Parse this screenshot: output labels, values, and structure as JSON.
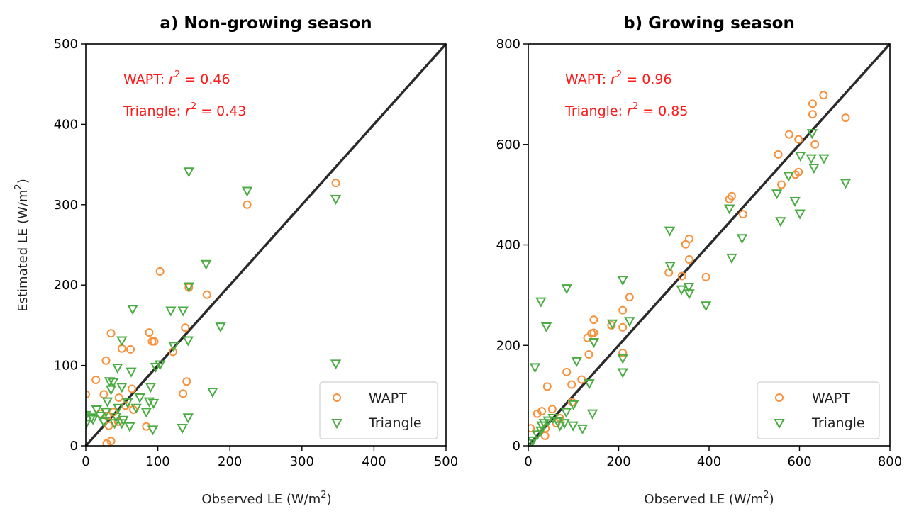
{
  "colors": {
    "wapt": "#f7913b",
    "triangle": "#4aac43",
    "line": "#2b2b2b",
    "annotation": "#ff1a1a"
  },
  "chart_data": [
    {
      "type": "scatter",
      "title": "a) Non-growing season",
      "xlabel_main": "Observed LE (W/m",
      "xlabel_sup": "2",
      "xlabel_end": ")",
      "ylabel_main": "Estimated LE (W/m",
      "ylabel_sup": "2",
      "ylabel_end": ")",
      "xlim": [
        0,
        500
      ],
      "ylim": [
        0,
        500
      ],
      "xticks": [
        0,
        100,
        200,
        300,
        400,
        500
      ],
      "yticks": [
        0,
        100,
        200,
        300,
        400,
        500
      ],
      "xtick_labels": [
        "0",
        "100",
        "200",
        "300",
        "400",
        "500"
      ],
      "ytick_labels": [
        "0",
        "100",
        "200",
        "300",
        "400",
        "500"
      ],
      "one_to_one_line": true,
      "annotations": [
        {
          "prefix": "WAPT: ",
          "r": "r",
          "sup": "2",
          "suffix": " = 0.46"
        },
        {
          "prefix": "Triangle: ",
          "r": "r",
          "sup": "2",
          "suffix": " = 0.43"
        }
      ],
      "legend": [
        "WAPT",
        "Triangle"
      ],
      "legend_position": "lower-right",
      "series": [
        {
          "name": "WAPT",
          "marker": "circle",
          "points": [
            [
              0,
              64
            ],
            [
              14,
              82
            ],
            [
              28,
              106
            ],
            [
              35,
              140
            ],
            [
              50,
              121
            ],
            [
              62,
              120
            ],
            [
              103,
              217
            ],
            [
              143,
              197
            ],
            [
              138,
              147
            ],
            [
              168,
              188
            ],
            [
              88,
              141
            ],
            [
              92,
              130
            ],
            [
              95,
              130
            ],
            [
              121,
              117
            ],
            [
              140,
              80
            ],
            [
              135,
              65
            ],
            [
              64,
              71
            ],
            [
              66,
              45
            ],
            [
              46,
              60
            ],
            [
              30,
              37
            ],
            [
              38,
              42
            ],
            [
              45,
              30
            ],
            [
              25,
              64
            ],
            [
              32,
              25
            ],
            [
              29,
              3
            ],
            [
              35,
              6
            ],
            [
              84,
              24
            ],
            [
              224,
              300
            ],
            [
              347,
              327
            ],
            [
              55,
              50
            ],
            [
              20,
              40
            ]
          ]
        },
        {
          "name": "Triangle",
          "marker": "triangle",
          "points": [
            [
              143,
              341
            ],
            [
              224,
              317
            ],
            [
              347,
              307
            ],
            [
              167,
              226
            ],
            [
              143,
              198
            ],
            [
              65,
              170
            ],
            [
              118,
              168
            ],
            [
              135,
              168
            ],
            [
              187,
              148
            ],
            [
              50,
              131
            ],
            [
              122,
              124
            ],
            [
              142,
              131
            ],
            [
              44,
              97
            ],
            [
              97,
              98
            ],
            [
              103,
              101
            ],
            [
              33,
              80
            ],
            [
              38,
              79
            ],
            [
              50,
              73
            ],
            [
              90,
              73
            ],
            [
              63,
              92
            ],
            [
              35,
              70
            ],
            [
              0,
              38
            ],
            [
              10,
              33
            ],
            [
              20,
              37
            ],
            [
              25,
              30
            ],
            [
              28,
              42
            ],
            [
              40,
              28
            ],
            [
              42,
              36
            ],
            [
              50,
              28
            ],
            [
              52,
              32
            ],
            [
              45,
              47
            ],
            [
              58,
              54
            ],
            [
              75,
              60
            ],
            [
              88,
              55
            ],
            [
              94,
              53
            ],
            [
              84,
              42
            ],
            [
              61,
              24
            ],
            [
              93,
              20
            ],
            [
              134,
              22
            ],
            [
              142,
              35
            ],
            [
              176,
              67
            ],
            [
              347,
              102
            ],
            [
              0,
              27
            ],
            [
              8,
              35
            ],
            [
              15,
              45
            ],
            [
              30,
              55
            ],
            [
              70,
              47
            ]
          ]
        }
      ]
    },
    {
      "type": "scatter",
      "title": "b) Growing season",
      "xlabel_main": "Observed LE (W/m",
      "xlabel_sup": "2",
      "xlabel_end": ")",
      "xlim": [
        0,
        800
      ],
      "ylim": [
        0,
        800
      ],
      "xticks": [
        0,
        200,
        400,
        600,
        800
      ],
      "yticks": [
        0,
        200,
        400,
        600,
        800
      ],
      "xtick_labels": [
        "0",
        "200",
        "400",
        "600",
        "800"
      ],
      "ytick_labels": [
        "0",
        "200",
        "400",
        "600",
        "800"
      ],
      "one_to_one_line": true,
      "annotations": [
        {
          "prefix": "WAPT: ",
          "r": "r",
          "sup": "2",
          "suffix": " = 0.96"
        },
        {
          "prefix": "Triangle: ",
          "r": "r",
          "sup": "2",
          "suffix": " = 0.85"
        }
      ],
      "legend": [
        "WAPT",
        "Triangle"
      ],
      "legend_position": "lower-right",
      "series": [
        {
          "name": "WAPT",
          "marker": "circle",
          "points": [
            [
              653,
              698
            ],
            [
              629,
              681
            ],
            [
              629,
              660
            ],
            [
              702,
              653
            ],
            [
              577,
              620
            ],
            [
              598,
              610
            ],
            [
              634,
              600
            ],
            [
              553,
              580
            ],
            [
              598,
              545
            ],
            [
              591,
              540
            ],
            [
              560,
              520
            ],
            [
              450,
              497
            ],
            [
              445,
              491
            ],
            [
              475,
              461
            ],
            [
              356,
              412
            ],
            [
              348,
              401
            ],
            [
              356,
              371
            ],
            [
              340,
              338
            ],
            [
              311,
              345
            ],
            [
              393,
              336
            ],
            [
              224,
              296
            ],
            [
              209,
              270
            ],
            [
              145,
              251
            ],
            [
              145,
              225
            ],
            [
              140,
              224
            ],
            [
              131,
              215
            ],
            [
              209,
              236
            ],
            [
              184,
              240
            ],
            [
              209,
              185
            ],
            [
              134,
              182
            ],
            [
              85,
              147
            ],
            [
              118,
              132
            ],
            [
              96,
              122
            ],
            [
              42,
              118
            ],
            [
              97,
              87
            ],
            [
              53,
              73
            ],
            [
              30,
              69
            ],
            [
              20,
              64
            ],
            [
              38,
              35
            ],
            [
              5,
              35
            ],
            [
              37,
              20
            ],
            [
              62,
              45
            ],
            [
              70,
              55
            ]
          ]
        },
        {
          "name": "Triangle",
          "marker": "triangle",
          "points": [
            [
              628,
              622
            ],
            [
              602,
              577
            ],
            [
              626,
              572
            ],
            [
              654,
              572
            ],
            [
              576,
              537
            ],
            [
              632,
              553
            ],
            [
              550,
              502
            ],
            [
              590,
              487
            ],
            [
              558,
              447
            ],
            [
              601,
              462
            ],
            [
              702,
              523
            ],
            [
              445,
              472
            ],
            [
              473,
              413
            ],
            [
              450,
              374
            ],
            [
              313,
              428
            ],
            [
              314,
              358
            ],
            [
              339,
              311
            ],
            [
              355,
              316
            ],
            [
              356,
              303
            ],
            [
              393,
              279
            ],
            [
              209,
              330
            ],
            [
              224,
              248
            ],
            [
              186,
              243
            ],
            [
              145,
              206
            ],
            [
              209,
              174
            ],
            [
              209,
              146
            ],
            [
              107,
              168
            ],
            [
              85,
              313
            ],
            [
              28,
              287
            ],
            [
              40,
              237
            ],
            [
              15,
              156
            ],
            [
              135,
              124
            ],
            [
              142,
              64
            ],
            [
              100,
              82
            ],
            [
              99,
              40
            ],
            [
              120,
              34
            ],
            [
              84,
              67
            ],
            [
              44,
              50
            ],
            [
              30,
              40
            ],
            [
              28,
              30
            ],
            [
              55,
              55
            ],
            [
              65,
              48
            ],
            [
              10,
              10
            ],
            [
              5,
              5
            ],
            [
              20,
              22
            ],
            [
              35,
              45
            ],
            [
              70,
              40
            ],
            [
              80,
              45
            ]
          ]
        }
      ]
    }
  ]
}
